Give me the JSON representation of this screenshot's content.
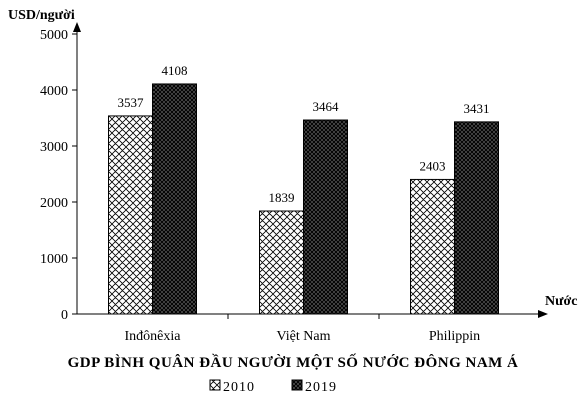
{
  "chart_data": {
    "type": "bar",
    "title": "GDP BÌNH QUÂN ĐẦU NGƯỜI MỘT SỐ NƯỚC ĐÔNG NAM Á",
    "ylabel": "USD/người",
    "xlabel": "Nước",
    "categories": [
      "Inđônêxia",
      "Việt Nam",
      "Philippin"
    ],
    "series": [
      {
        "name": "2010",
        "values": [
          3537,
          1839,
          2403
        ],
        "fill": "cross-hatch"
      },
      {
        "name": "2019",
        "values": [
          4108,
          3464,
          3431
        ],
        "fill": "dense-dark"
      }
    ],
    "ylim": [
      0,
      5000
    ],
    "yticks": [
      "0",
      "1000",
      "2000",
      "3000",
      "4000",
      "5000"
    ],
    "grid": false,
    "legend": "bottom-center"
  },
  "colors": {
    "axis": "#000000",
    "bar_stroke": "#000000",
    "hatch": "#000000",
    "dark_fill": "#2b2b2b"
  }
}
